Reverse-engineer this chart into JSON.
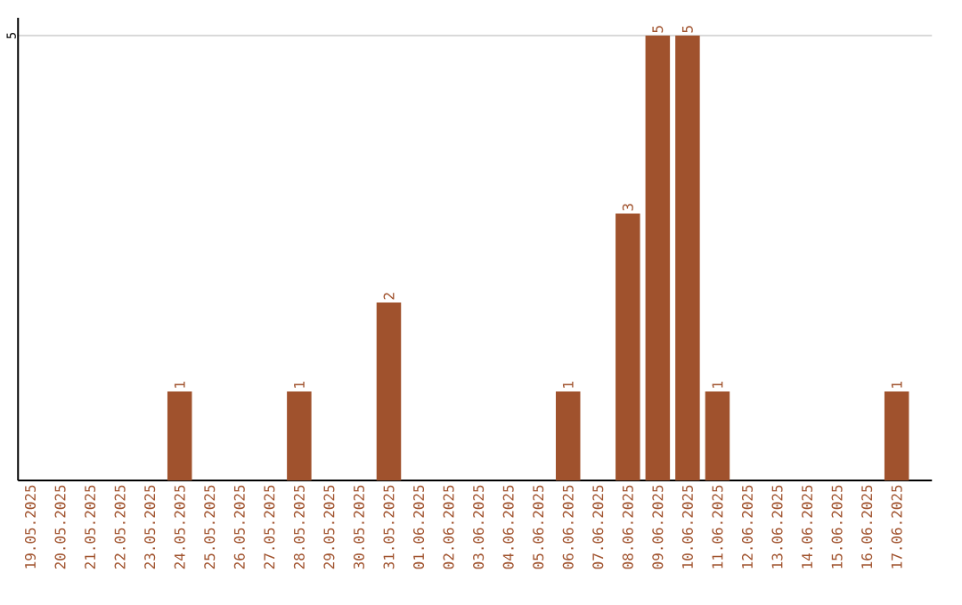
{
  "chart_data": {
    "type": "bar",
    "categories": [
      "19.05.2025",
      "20.05.2025",
      "21.05.2025",
      "22.05.2025",
      "23.05.2025",
      "24.05.2025",
      "25.05.2025",
      "26.05.2025",
      "27.05.2025",
      "28.05.2025",
      "29.05.2025",
      "30.05.2025",
      "31.05.2025",
      "01.06.2025",
      "02.06.2025",
      "03.06.2025",
      "04.06.2025",
      "05.06.2025",
      "06.06.2025",
      "07.06.2025",
      "08.06.2025",
      "09.06.2025",
      "10.06.2025",
      "11.06.2025",
      "12.06.2025",
      "13.06.2025",
      "14.06.2025",
      "15.06.2025",
      "16.06.2025",
      "17.06.2025"
    ],
    "values": [
      0,
      0,
      0,
      0,
      0,
      1,
      0,
      0,
      0,
      1,
      0,
      0,
      2,
      0,
      0,
      0,
      0,
      0,
      1,
      0,
      3,
      5,
      5,
      1,
      0,
      0,
      0,
      0,
      0,
      1
    ],
    "value_labels": [
      null,
      null,
      null,
      null,
      null,
      "1",
      null,
      null,
      null,
      "1",
      null,
      null,
      "2",
      null,
      null,
      null,
      null,
      null,
      "1",
      null,
      "3",
      "5",
      "5",
      "1",
      null,
      null,
      null,
      null,
      null,
      "1"
    ],
    "color": "#a0522d",
    "ylim": [
      0,
      5.2
    ],
    "yticks": [
      5
    ],
    "grid": "y"
  }
}
